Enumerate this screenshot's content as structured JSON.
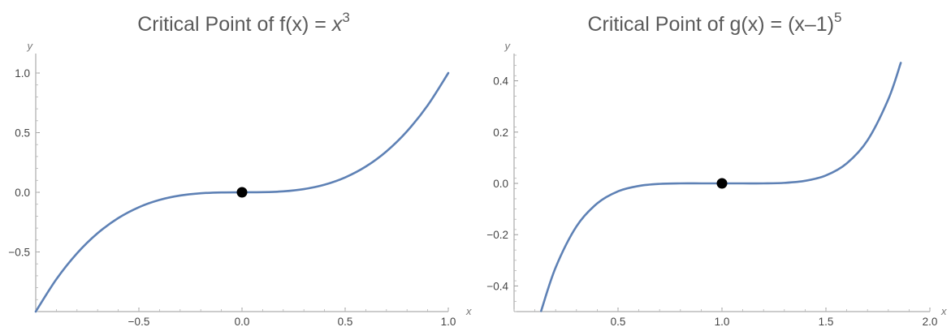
{
  "chart_data": [
    {
      "type": "line",
      "title": "Critical Point of f(x) = x",
      "title_exponent": "3",
      "title_parts": [
        "Critical Point of f(x) = ",
        "x",
        "3"
      ],
      "xlabel": "x",
      "ylabel": "y",
      "xlim": [
        -1.0,
        1.0
      ],
      "ylim": [
        -1.0,
        1.0
      ],
      "xticks": [
        -0.5,
        0.0,
        0.5,
        1.0
      ],
      "xtick_labels": [
        "-0.5",
        "0.0",
        "0.5",
        "1.0"
      ],
      "yticks": [
        -0.5,
        0.0,
        0.5,
        1.0
      ],
      "ytick_labels": [
        "-0.5",
        "0.0",
        "0.5",
        "1.0"
      ],
      "series": [
        {
          "function": "x^3",
          "color": "#5e81b5",
          "x": [
            -1.0,
            -0.9,
            -0.8,
            -0.7,
            -0.6,
            -0.5,
            -0.4,
            -0.3,
            -0.2,
            -0.1,
            0.0,
            0.1,
            0.2,
            0.3,
            0.4,
            0.5,
            0.6,
            0.7,
            0.8,
            0.9,
            1.0
          ],
          "y": [
            -1.0,
            -0.729,
            -0.512,
            -0.343,
            -0.216,
            -0.125,
            -0.064,
            -0.027,
            -0.008,
            -0.001,
            0.0,
            0.001,
            0.008,
            0.027,
            0.064,
            0.125,
            0.216,
            0.343,
            0.512,
            0.729,
            1.0
          ]
        }
      ],
      "points": [
        {
          "x": 0.0,
          "y": 0.0,
          "color": "#000000"
        }
      ],
      "grid": false
    },
    {
      "type": "line",
      "title": "Critical Point of g(x) = (x–1)",
      "title_exponent": "5",
      "title_parts": [
        "Critical Point of g(x) = (x–1)",
        "5"
      ],
      "xlabel": "x",
      "ylabel": "y",
      "xlim": [
        0.0,
        2.0
      ],
      "ylim": [
        -0.5,
        0.5
      ],
      "xticks": [
        0.5,
        1.0,
        1.5,
        2.0
      ],
      "xtick_labels": [
        "0.5",
        "1.0",
        "1.5",
        "2.0"
      ],
      "yticks": [
        -0.4,
        -0.2,
        0.0,
        0.2,
        0.4
      ],
      "ytick_labels": [
        "-0.4",
        "-0.2",
        "0.0",
        "0.2",
        "0.4"
      ],
      "series": [
        {
          "function": "(x-1)^5",
          "color": "#5e81b5",
          "x": [
            0.13,
            0.2,
            0.3,
            0.4,
            0.5,
            0.6,
            0.7,
            0.8,
            0.9,
            1.0,
            1.1,
            1.2,
            1.3,
            1.4,
            1.5,
            1.6,
            1.7,
            1.8,
            1.86
          ],
          "y": [
            -0.498,
            -0.328,
            -0.168,
            -0.078,
            -0.031,
            -0.01,
            -0.002,
            0.0,
            0.0,
            0.0,
            0.0,
            0.0,
            0.002,
            0.01,
            0.031,
            0.078,
            0.168,
            0.328,
            0.47
          ]
        }
      ],
      "points": [
        {
          "x": 1.0,
          "y": 0.0,
          "color": "#000000"
        }
      ],
      "grid": false
    }
  ]
}
